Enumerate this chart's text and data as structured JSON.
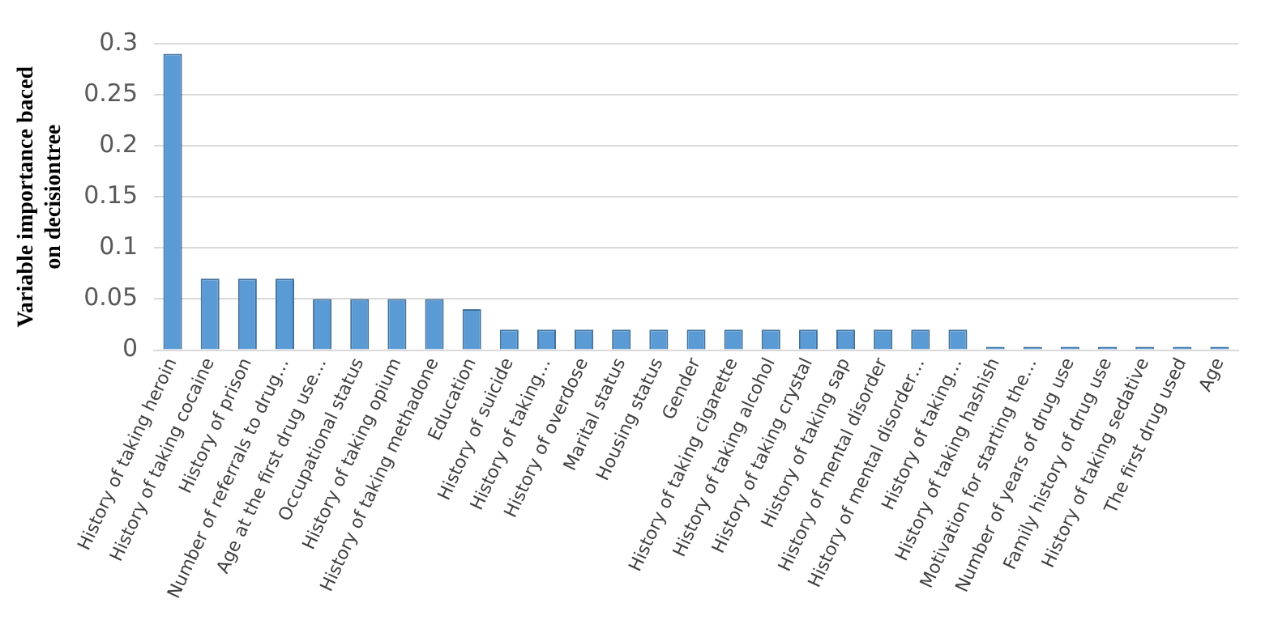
{
  "chart_data": {
    "type": "bar",
    "ylabel": "Variable importance baced on decisiontree",
    "categories": [
      "History of taking heroin",
      "History of taking cocaine",
      "History of prison",
      "Number of referrals to drug…",
      "Age at the first drug use…",
      "Occupational status",
      "History of taking opium",
      "History of taking methadone",
      "Education",
      "History of suicide",
      "History of taking…",
      "History of overdose",
      "Marital status",
      "Housing status",
      "Gender",
      "History of taking cigarette",
      "History of taking alcohol",
      "History of taking crystal",
      "History of taking sap",
      "History of mental disorder",
      "History of mental disorder…",
      "History of taking…",
      "History of taking hashish",
      "Motivation for starting the…",
      "Number of years of drug use",
      "Family history of drug use",
      "History of taking sedative",
      "The first drug used",
      "Age"
    ],
    "values": [
      0.29,
      0.07,
      0.07,
      0.07,
      0.05,
      0.05,
      0.05,
      0.05,
      0.04,
      0.02,
      0.02,
      0.02,
      0.02,
      0.02,
      0.02,
      0.02,
      0.02,
      0.02,
      0.02,
      0.02,
      0.02,
      0.02,
      0,
      0,
      0,
      0,
      0,
      0,
      0
    ],
    "color": "#5b9bd5",
    "ylim": [
      0,
      0.3
    ],
    "yticks": [
      0,
      0.05,
      0.1,
      0.15,
      0.2,
      0.25,
      0.3
    ],
    "grid": "y"
  }
}
